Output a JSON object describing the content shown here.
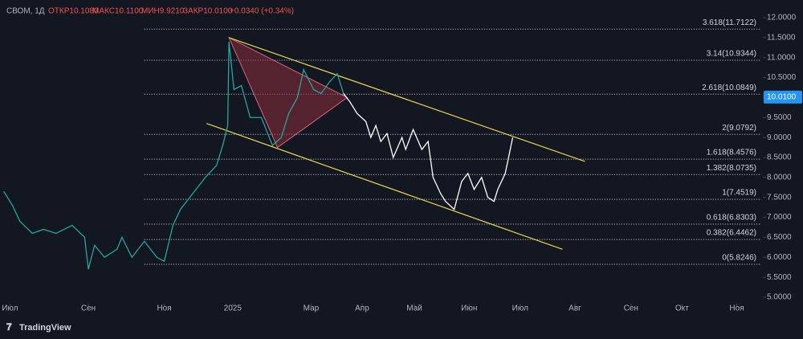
{
  "chart_data": {
    "type": "price-chart",
    "header": {
      "symbol": "СВОМ, 1Д",
      "open": "ОТКР10.1080",
      "high": "МАКС10.1100",
      "low": "МИН9.9210",
      "close": "ЗАКР10.0100",
      "change": "+0.0340 (+0.34%)"
    },
    "branding": "TradingView",
    "xlim": [
      -8,
      605
    ],
    "xticks": [
      {
        "value": 0,
        "label": "Июл"
      },
      {
        "value": 63,
        "label": "Сен"
      },
      {
        "value": 124,
        "label": "Ноя"
      },
      {
        "value": 179,
        "label": "2025"
      },
      {
        "value": 242,
        "label": "Мар"
      },
      {
        "value": 283,
        "label": "Апр"
      },
      {
        "value": 325,
        "label": "Май"
      },
      {
        "value": 369,
        "label": "Июн"
      },
      {
        "value": 410,
        "label": "Июл"
      },
      {
        "value": 454,
        "label": "Авг"
      },
      {
        "value": 499,
        "label": "Сен"
      },
      {
        "value": 540,
        "label": "Окт"
      },
      {
        "value": 584,
        "label": "Ноя"
      }
    ],
    "ylim": [
      5.0,
      12.0
    ],
    "yticks": [
      {
        "value": 5,
        "label": "5.0000"
      },
      {
        "value": 5.5,
        "label": "5.5000"
      },
      {
        "value": 6,
        "label": "6.0000"
      },
      {
        "value": 6.5,
        "label": "6.5000"
      },
      {
        "value": 7,
        "label": "7.0000"
      },
      {
        "value": 7.5,
        "label": "7.5000"
      },
      {
        "value": 8,
        "label": "8.0000"
      },
      {
        "value": 8.5,
        "label": "8.5000"
      },
      {
        "value": 9,
        "label": "9.0000"
      },
      {
        "value": 9.5,
        "label": "9.5000"
      },
      {
        "value": 10,
        "label": "10.0000"
      },
      {
        "value": 10.5,
        "label": "10.5000"
      },
      {
        "value": 11,
        "label": "11.0000"
      },
      {
        "value": 11.5,
        "label": "11.5000"
      },
      {
        "value": 12,
        "label": "12.0000"
      }
    ],
    "last_price": {
      "value": 10.01,
      "label": "10.0100"
    },
    "series": [
      {
        "color": "#26a69a",
        "x": [
          -5,
          2,
          8,
          18,
          27,
          37,
          50,
          60,
          63,
          68,
          76,
          86,
          90,
          98,
          108,
          118,
          124,
          131,
          137,
          147,
          157,
          166,
          171,
          175,
          176,
          180,
          186,
          193,
          202,
          211,
          218,
          224,
          231,
          236,
          244,
          250,
          257,
          263,
          268
        ],
        "y": [
          7.65,
          7.3,
          6.9,
          6.6,
          6.7,
          6.6,
          6.8,
          6.5,
          5.7,
          6.3,
          6.0,
          6.2,
          6.5,
          6.0,
          6.4,
          6.0,
          5.9,
          6.8,
          7.2,
          7.6,
          8.0,
          8.3,
          8.8,
          9.3,
          11.4,
          10.2,
          10.3,
          9.5,
          9.5,
          8.8,
          9.0,
          9.6,
          10.0,
          10.7,
          10.2,
          10.1,
          10.4,
          10.6,
          10.1
        ]
      },
      {
        "color": "#ffffff",
        "x": [
          268,
          273,
          279,
          286,
          290,
          294,
          298,
          303,
          308,
          315,
          318,
          324,
          331,
          336,
          340,
          346,
          350,
          357,
          363,
          368,
          373,
          379,
          384,
          389,
          392,
          398,
          404
        ],
        "y": [
          10.1,
          9.9,
          9.6,
          9.4,
          9.0,
          9.3,
          8.9,
          9.1,
          8.5,
          9.0,
          8.7,
          9.2,
          8.7,
          8.9,
          8.0,
          7.6,
          7.4,
          7.2,
          7.9,
          8.1,
          7.7,
          8.0,
          7.5,
          7.4,
          7.7,
          8.1,
          9.0
        ]
      }
    ],
    "channel": {
      "color": "#e8d44d",
      "upper": {
        "x": [
          176,
          462
        ],
        "y": [
          11.5,
          8.4
        ]
      },
      "lower": {
        "x": [
          158,
          444
        ],
        "y": [
          9.35,
          6.2
        ]
      }
    },
    "triangle": {
      "color": "#8b2e3a",
      "x": [
        176,
        215,
        271
      ],
      "y": [
        11.5,
        8.75,
        10.0
      ]
    },
    "fib_start": 108,
    "fib_levels": [
      {
        "value": 11.7122,
        "label": "3.618(11.7122)"
      },
      {
        "value": 10.9344,
        "label": "3.14(10.9344)"
      },
      {
        "value": 10.0849,
        "label": "2.618(10.0849)"
      },
      {
        "value": 9.0792,
        "label": "2(9.0792)"
      },
      {
        "value": 8.4576,
        "label": "1.618(8.4576)"
      },
      {
        "value": 8.0735,
        "label": "1.382(8.0735)"
      },
      {
        "value": 7.4519,
        "label": "1(7.4519)"
      },
      {
        "value": 6.8303,
        "label": "0.618(6.8303)"
      },
      {
        "value": 6.4462,
        "label": "0.382(6.4462)"
      },
      {
        "value": 5.8246,
        "label": "0(5.8246)"
      }
    ]
  }
}
